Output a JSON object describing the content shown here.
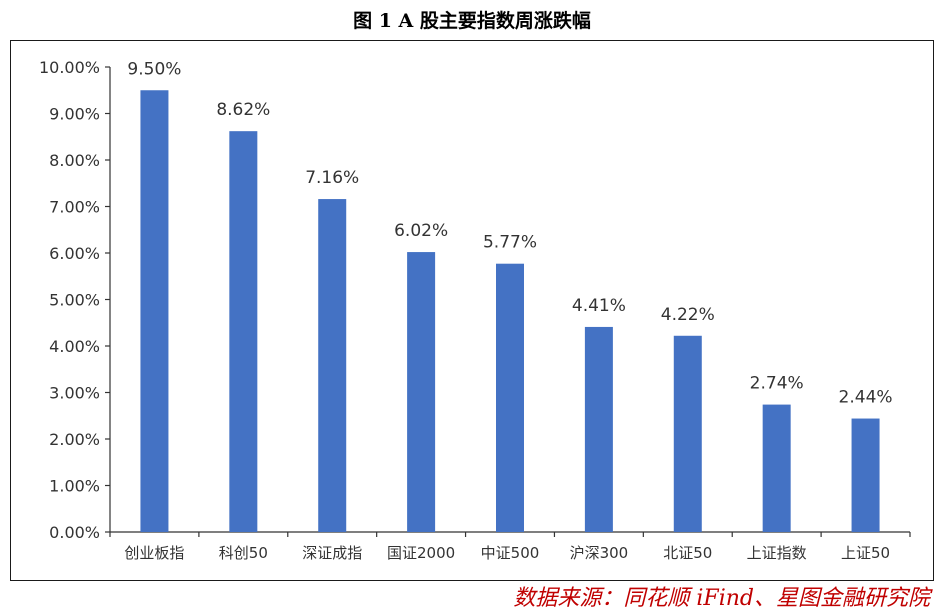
{
  "title": "图 1 A 股主要指数周涨跌幅",
  "source": "数据来源：同花顺 iFind、星图金融研究院",
  "colors": {
    "bar": "#4472c4",
    "axis": "#333333",
    "source_text": "#c00000"
  },
  "chart_data": {
    "type": "bar",
    "title": "图 1 A 股主要指数周涨跌幅",
    "xlabel": "",
    "ylabel": "",
    "categories": [
      "创业板指",
      "科创50",
      "深证成指",
      "国证2000",
      "中证500",
      "沪深300",
      "北证50",
      "上证指数",
      "上证50"
    ],
    "values": [
      9.5,
      8.62,
      7.16,
      6.02,
      5.77,
      4.41,
      4.22,
      2.74,
      2.44
    ],
    "data_labels": [
      "9.50%",
      "8.62%",
      "7.16%",
      "6.02%",
      "5.77%",
      "4.41%",
      "4.22%",
      "2.74%",
      "2.44%"
    ],
    "ylim": [
      0,
      10
    ],
    "yticks": [
      0,
      1,
      2,
      3,
      4,
      5,
      6,
      7,
      8,
      9,
      10
    ],
    "ytick_labels": [
      "0.00%",
      "1.00%",
      "2.00%",
      "3.00%",
      "4.00%",
      "5.00%",
      "6.00%",
      "7.00%",
      "8.00%",
      "9.00%",
      "10.00%"
    ],
    "grid": false,
    "legend": "none"
  }
}
